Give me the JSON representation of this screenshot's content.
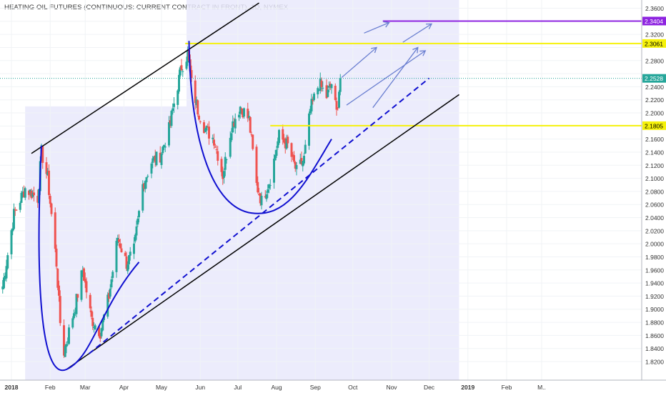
{
  "chart_data": {
    "type": "candlestick",
    "title": "HEATING OIL FUTURES (CONTINUOUS: CURRENT CONTRACT IN FRONT), 1D, NYMEX",
    "y_range": [
      1.808,
      2.366
    ],
    "y_ticks": [
      "2.3600",
      "2.3400",
      "2.3200",
      "2.3000",
      "2.2800",
      "2.2600",
      "2.2400",
      "2.2200",
      "2.2000",
      "2.1800",
      "2.1600",
      "2.1400",
      "2.1200",
      "2.1000",
      "2.0800",
      "2.0600",
      "2.0400",
      "2.0200",
      "2.0000",
      "1.9800",
      "1.9600",
      "1.9400",
      "1.9200",
      "1.9000",
      "1.8800",
      "1.8600",
      "1.8400",
      "1.8200"
    ],
    "x_ticks": [
      {
        "label": "2018",
        "date": "2018-01-01"
      },
      {
        "label": "Feb",
        "date": "2018-02-01"
      },
      {
        "label": "Mar",
        "date": "2018-03-01"
      },
      {
        "label": "Apr",
        "date": "2018-04-01"
      },
      {
        "label": "May",
        "date": "2018-05-01"
      },
      {
        "label": "Jun",
        "date": "2018-06-01"
      },
      {
        "label": "Jul",
        "date": "2018-07-01"
      },
      {
        "label": "Aug",
        "date": "2018-08-01"
      },
      {
        "label": "Sep",
        "date": "2018-09-01"
      },
      {
        "label": "Oct",
        "date": "2018-10-01"
      },
      {
        "label": "Nov",
        "date": "2018-11-01"
      },
      {
        "label": "Dec",
        "date": "2018-12-01"
      },
      {
        "label": "2019",
        "date": "2019-01-01"
      },
      {
        "label": "Feb",
        "date": "2019-02-01"
      },
      {
        "label": "M..",
        "date": "2019-03-01"
      }
    ],
    "price_labels": [
      {
        "label": "2.3404",
        "value": 2.3404,
        "color": "#8e24e0"
      },
      {
        "label": "2.3061",
        "value": 2.3061,
        "color": "#f5f10a"
      },
      {
        "label": "2.2528",
        "value": 2.2528,
        "color": "#26a69a"
      },
      {
        "label": "2.1805",
        "value": 2.1805,
        "color": "#f5f10a"
      }
    ],
    "colors": {
      "up": "#26a69a",
      "down": "#ef5350",
      "channel": "#000000",
      "curve": "#1010d0",
      "arrow": "#6a7fd0",
      "band": "#e9e9fb"
    },
    "anchors": [
      {
        "date": "2017-12-25",
        "close": 1.935
      },
      {
        "date": "2018-01-03",
        "close": 2.045
      },
      {
        "date": "2018-01-12",
        "close": 2.085
      },
      {
        "date": "2018-01-22",
        "close": 2.07
      },
      {
        "date": "2018-01-25",
        "close": 2.14
      },
      {
        "date": "2018-01-30",
        "close": 2.1
      },
      {
        "date": "2018-02-06",
        "close": 1.97
      },
      {
        "date": "2018-02-09",
        "close": 1.88
      },
      {
        "date": "2018-02-12",
        "close": 1.835
      },
      {
        "date": "2018-02-21",
        "close": 1.905
      },
      {
        "date": "2018-02-27",
        "close": 1.96
      },
      {
        "date": "2018-03-06",
        "close": 1.885
      },
      {
        "date": "2018-03-13",
        "close": 1.865
      },
      {
        "date": "2018-03-20",
        "close": 1.92
      },
      {
        "date": "2018-03-27",
        "close": 2.01
      },
      {
        "date": "2018-04-03",
        "close": 1.97
      },
      {
        "date": "2018-04-09",
        "close": 1.99
      },
      {
        "date": "2018-04-16",
        "close": 2.09
      },
      {
        "date": "2018-04-23",
        "close": 2.125
      },
      {
        "date": "2018-04-30",
        "close": 2.135
      },
      {
        "date": "2018-05-07",
        "close": 2.175
      },
      {
        "date": "2018-05-11",
        "close": 2.215
      },
      {
        "date": "2018-05-17",
        "close": 2.27
      },
      {
        "date": "2018-05-22",
        "close": 2.29
      },
      {
        "date": "2018-05-25",
        "close": 2.245
      },
      {
        "date": "2018-05-30",
        "close": 2.205
      },
      {
        "date": "2018-06-05",
        "close": 2.175
      },
      {
        "date": "2018-06-12",
        "close": 2.16
      },
      {
        "date": "2018-06-19",
        "close": 2.105
      },
      {
        "date": "2018-06-26",
        "close": 2.18
      },
      {
        "date": "2018-07-03",
        "close": 2.21
      },
      {
        "date": "2018-07-10",
        "close": 2.19
      },
      {
        "date": "2018-07-16",
        "close": 2.09
      },
      {
        "date": "2018-07-20",
        "close": 2.065
      },
      {
        "date": "2018-07-27",
        "close": 2.1
      },
      {
        "date": "2018-08-03",
        "close": 2.165
      },
      {
        "date": "2018-08-10",
        "close": 2.15
      },
      {
        "date": "2018-08-17",
        "close": 2.11
      },
      {
        "date": "2018-08-23",
        "close": 2.13
      },
      {
        "date": "2018-08-28",
        "close": 2.205
      },
      {
        "date": "2018-09-04",
        "close": 2.245
      },
      {
        "date": "2018-09-10",
        "close": 2.225
      },
      {
        "date": "2018-09-14",
        "close": 2.245
      },
      {
        "date": "2018-09-18",
        "close": 2.2
      },
      {
        "date": "2018-09-21",
        "close": 2.2528
      }
    ]
  }
}
